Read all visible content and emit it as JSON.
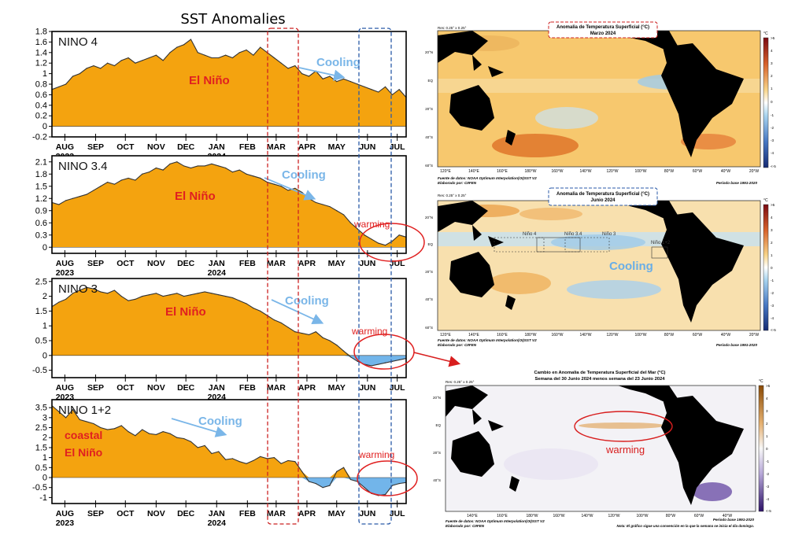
{
  "main_title": "SST Anomalies",
  "x_month_labels": [
    "AUG",
    "SEP",
    "OCT",
    "NOV",
    "DEC",
    "JAN",
    "FEB",
    "MAR",
    "APR",
    "MAY",
    "JUN",
    "JUL"
  ],
  "x_year_labels": [
    "2023",
    "2024"
  ],
  "chart_data": [
    {
      "type": "area",
      "title": "NINO 4",
      "ylim": [
        -0.2,
        1.8
      ],
      "yticks": [
        "-0.2",
        "0",
        "0.2",
        "0.4",
        "0.6",
        "0.8",
        "1",
        "1.2",
        "1.4",
        "1.6",
        "1.8"
      ],
      "x": [
        "2023-07-19",
        "2023-07-26",
        "2023-08-02",
        "2023-08-09",
        "2023-08-16",
        "2023-08-23",
        "2023-08-30",
        "2023-09-06",
        "2023-09-13",
        "2023-09-20",
        "2023-09-27",
        "2023-10-04",
        "2023-10-11",
        "2023-10-18",
        "2023-10-25",
        "2023-11-01",
        "2023-11-08",
        "2023-11-15",
        "2023-11-22",
        "2023-11-29",
        "2023-12-06",
        "2023-12-13",
        "2023-12-20",
        "2023-12-27",
        "2024-01-03",
        "2024-01-10",
        "2024-01-17",
        "2024-01-24",
        "2024-01-31",
        "2024-02-07",
        "2024-02-14",
        "2024-02-21",
        "2024-02-28",
        "2024-03-06",
        "2024-03-13",
        "2024-03-20",
        "2024-03-27",
        "2024-04-03",
        "2024-04-10",
        "2024-04-17",
        "2024-04-24",
        "2024-05-01",
        "2024-05-08",
        "2024-05-15",
        "2024-05-22",
        "2024-05-29",
        "2024-06-05",
        "2024-06-12",
        "2024-06-19",
        "2024-06-26",
        "2024-07-03",
        "2024-07-10"
      ],
      "values": [
        0.7,
        0.75,
        0.8,
        0.95,
        1.0,
        1.1,
        1.15,
        1.1,
        1.2,
        1.15,
        1.25,
        1.3,
        1.2,
        1.25,
        1.3,
        1.35,
        1.25,
        1.4,
        1.5,
        1.55,
        1.65,
        1.4,
        1.35,
        1.3,
        1.3,
        1.35,
        1.3,
        1.4,
        1.45,
        1.35,
        1.5,
        1.4,
        1.3,
        1.2,
        1.1,
        1.15,
        1.0,
        0.95,
        1.05,
        0.9,
        0.95,
        0.85,
        0.9,
        0.85,
        0.8,
        0.75,
        0.7,
        0.65,
        0.75,
        0.6,
        0.7,
        0.55
      ],
      "annotations": [
        {
          "text": "El Niño",
          "color": "#e02020"
        },
        {
          "text": "Cooling",
          "color": "#7ab6e8"
        }
      ]
    },
    {
      "type": "area",
      "title": "NINO 3.4",
      "ylim": [
        -0.15,
        2.25
      ],
      "yticks": [
        "0",
        "0.3",
        "0.6",
        "0.9",
        "1.2",
        "1.5",
        "1.8",
        "2.1"
      ],
      "x": [
        "2023-07-19",
        "2023-07-26",
        "2023-08-02",
        "2023-08-09",
        "2023-08-16",
        "2023-08-23",
        "2023-08-30",
        "2023-09-06",
        "2023-09-13",
        "2023-09-20",
        "2023-09-27",
        "2023-10-04",
        "2023-10-11",
        "2023-10-18",
        "2023-10-25",
        "2023-11-01",
        "2023-11-08",
        "2023-11-15",
        "2023-11-22",
        "2023-11-29",
        "2023-12-06",
        "2023-12-13",
        "2023-12-20",
        "2023-12-27",
        "2024-01-03",
        "2024-01-10",
        "2024-01-17",
        "2024-01-24",
        "2024-01-31",
        "2024-02-07",
        "2024-02-14",
        "2024-02-21",
        "2024-02-28",
        "2024-03-06",
        "2024-03-13",
        "2024-03-20",
        "2024-03-27",
        "2024-04-03",
        "2024-04-10",
        "2024-04-17",
        "2024-04-24",
        "2024-05-01",
        "2024-05-08",
        "2024-05-15",
        "2024-05-22",
        "2024-05-29",
        "2024-06-05",
        "2024-06-12",
        "2024-06-19",
        "2024-06-26",
        "2024-07-03",
        "2024-07-10"
      ],
      "values": [
        1.1,
        1.05,
        1.15,
        1.2,
        1.25,
        1.3,
        1.4,
        1.5,
        1.6,
        1.55,
        1.65,
        1.7,
        1.65,
        1.8,
        1.85,
        1.95,
        1.9,
        2.05,
        2.1,
        2.0,
        1.95,
        2.0,
        2.0,
        2.05,
        2.0,
        1.95,
        1.85,
        1.9,
        1.8,
        1.75,
        1.7,
        1.6,
        1.55,
        1.5,
        1.4,
        1.45,
        1.35,
        1.2,
        1.1,
        1.05,
        1.0,
        0.9,
        0.8,
        0.6,
        0.45,
        0.3,
        0.2,
        0.1,
        0.05,
        0.15,
        0.3,
        0.25
      ],
      "annotations": [
        {
          "text": "El Niño",
          "color": "#e02020"
        },
        {
          "text": "Cooling",
          "color": "#7ab6e8"
        },
        {
          "text": "warming",
          "color": "#e02020"
        }
      ]
    },
    {
      "type": "area",
      "title": "NINO 3",
      "ylim": [
        -0.75,
        2.6
      ],
      "yticks": [
        "-0.5",
        "0",
        "0.5",
        "1",
        "1.5",
        "2",
        "2.5"
      ],
      "x": [
        "2023-07-19",
        "2023-07-26",
        "2023-08-02",
        "2023-08-09",
        "2023-08-16",
        "2023-08-23",
        "2023-08-30",
        "2023-09-06",
        "2023-09-13",
        "2023-09-20",
        "2023-09-27",
        "2023-10-04",
        "2023-10-11",
        "2023-10-18",
        "2023-10-25",
        "2023-11-01",
        "2023-11-08",
        "2023-11-15",
        "2023-11-22",
        "2023-11-29",
        "2023-12-06",
        "2023-12-13",
        "2023-12-20",
        "2023-12-27",
        "2024-01-03",
        "2024-01-10",
        "2024-01-17",
        "2024-01-24",
        "2024-01-31",
        "2024-02-07",
        "2024-02-14",
        "2024-02-21",
        "2024-02-28",
        "2024-03-06",
        "2024-03-13",
        "2024-03-20",
        "2024-03-27",
        "2024-04-03",
        "2024-04-10",
        "2024-04-17",
        "2024-04-24",
        "2024-05-01",
        "2024-05-08",
        "2024-05-15",
        "2024-05-22",
        "2024-05-29",
        "2024-06-05",
        "2024-06-12",
        "2024-06-19",
        "2024-06-26",
        "2024-07-03",
        "2024-07-10"
      ],
      "values": [
        1.65,
        1.8,
        1.9,
        2.1,
        2.2,
        2.3,
        2.25,
        2.15,
        2.1,
        2.2,
        2.0,
        1.85,
        1.9,
        2.0,
        2.05,
        2.1,
        2.0,
        2.05,
        2.1,
        2.0,
        2.05,
        2.1,
        2.15,
        2.1,
        2.05,
        2.0,
        1.95,
        1.85,
        1.75,
        1.6,
        1.5,
        1.35,
        1.2,
        1.1,
        0.95,
        0.8,
        0.75,
        0.7,
        0.8,
        0.6,
        0.5,
        0.35,
        0.15,
        -0.05,
        -0.2,
        -0.3,
        -0.35,
        -0.3,
        -0.25,
        -0.2,
        -0.15,
        -0.1
      ],
      "annotations": [
        {
          "text": "El Niño",
          "color": "#e02020"
        },
        {
          "text": "Cooling",
          "color": "#7ab6e8"
        },
        {
          "text": "warming",
          "color": "#e02020"
        }
      ]
    },
    {
      "type": "area",
      "title": "NINO 1+2",
      "ylim": [
        -1.3,
        3.9
      ],
      "yticks": [
        "-1",
        "-0.5",
        "0",
        "0.5",
        "1",
        "1.5",
        "2",
        "2.5",
        "3",
        "3.5"
      ],
      "x": [
        "2023-07-19",
        "2023-07-26",
        "2023-08-02",
        "2023-08-09",
        "2023-08-16",
        "2023-08-23",
        "2023-08-30",
        "2023-09-06",
        "2023-09-13",
        "2023-09-20",
        "2023-09-27",
        "2023-10-04",
        "2023-10-11",
        "2023-10-18",
        "2023-10-25",
        "2023-11-01",
        "2023-11-08",
        "2023-11-15",
        "2023-11-22",
        "2023-11-29",
        "2023-12-06",
        "2023-12-13",
        "2023-12-20",
        "2023-12-27",
        "2024-01-03",
        "2024-01-10",
        "2024-01-17",
        "2024-01-24",
        "2024-01-31",
        "2024-02-07",
        "2024-02-14",
        "2024-02-21",
        "2024-02-28",
        "2024-03-06",
        "2024-03-13",
        "2024-03-20",
        "2024-03-27",
        "2024-04-03",
        "2024-04-10",
        "2024-04-17",
        "2024-04-24",
        "2024-05-01",
        "2024-05-08",
        "2024-05-15",
        "2024-05-22",
        "2024-05-29",
        "2024-06-05",
        "2024-06-12",
        "2024-06-19",
        "2024-06-26",
        "2024-07-03",
        "2024-07-10"
      ],
      "values": [
        3.6,
        3.3,
        3.0,
        3.4,
        2.9,
        2.8,
        2.7,
        2.5,
        2.4,
        2.45,
        2.6,
        2.3,
        2.1,
        2.4,
        2.2,
        2.15,
        2.3,
        2.2,
        2.0,
        1.95,
        1.8,
        1.5,
        1.6,
        1.2,
        1.3,
        0.9,
        0.95,
        0.8,
        0.7,
        0.85,
        1.05,
        0.95,
        1.0,
        0.7,
        0.85,
        0.8,
        0.3,
        -0.2,
        -0.3,
        -0.5,
        -0.4,
        0.3,
        0.5,
        -0.1,
        -0.2,
        -0.5,
        -0.8,
        -0.9,
        -0.85,
        -0.4,
        -0.3,
        -0.25
      ],
      "annotations": [
        {
          "text": "coastal",
          "color": "#e02020"
        },
        {
          "text": "El Niño",
          "color": "#e02020"
        },
        {
          "text": "Cooling",
          "color": "#7ab6e8"
        },
        {
          "text": "warming",
          "color": "#e02020"
        }
      ]
    }
  ],
  "maps": {
    "march": {
      "title1": "Anomalia de Temperatura Superficial (°C)",
      "title2": "Marzo 2024",
      "res": "Res: 0.25° x 0.25°",
      "src1": "Fuente de datos: NOAA Optimum Interpolation(OI)SST V2",
      "src2": "Elaborado por: CIIFEN",
      "period": "Periodo base 1991-2020",
      "lat_labels": [
        "20°N",
        "EQ",
        "20°S",
        "40°S",
        "60°S"
      ],
      "lon_labels": [
        "120°E",
        "140°E",
        "160°E",
        "180°W",
        "160°W",
        "140°W",
        "120°W",
        "100°W",
        "80°W",
        "60°W",
        "40°W",
        "20°W"
      ],
      "colorbar_unit": "°C",
      "colorbar_ticks": [
        ">5",
        "4",
        "3",
        "2",
        "1",
        "0",
        "-1",
        "-2",
        "-3",
        "-4",
        "<-5"
      ]
    },
    "june": {
      "title1": "Anomalia de Temperatura Superficial (°C)",
      "title2": "Junio 2024",
      "res": "Res: 0.25° x 0.25°",
      "src1": "Fuente de datos: NOAA Optimum Interpolation(OI)SST V2",
      "src2": "Elaborado por: CIIFEN",
      "period": "Periodo base 1991-2020",
      "lat_labels": [
        "20°N",
        "EQ",
        "20°S",
        "40°S",
        "60°S"
      ],
      "lon_labels": [
        "120°E",
        "140°E",
        "160°E",
        "180°W",
        "160°W",
        "140°W",
        "120°W",
        "100°W",
        "80°W",
        "60°W",
        "40°W",
        "20°W"
      ],
      "region_labels": [
        "Niño 4",
        "Niño 3.4",
        "Niño 3",
        "Niño 1+2"
      ],
      "annotation": "Cooling",
      "colorbar_unit": "°C",
      "colorbar_ticks": [
        ">5",
        "4",
        "3",
        "2",
        "1",
        "0",
        "-1",
        "-2",
        "-3",
        "-4",
        "<-5"
      ]
    },
    "change": {
      "title1": "Cambio en Anomalia de Temperatura Superficial del Mar (°C)",
      "title2": "Semana del 30 Junio 2024 menos semana del 23 Junio 2024",
      "res": "Res: 0.25° x 0.25°",
      "src1": "Fuente de datos: NOAA Optimum Interpolation(OI)SST V2",
      "src2": "Elaborado por: CIIFEN",
      "period": "Periodo base 1991-2020",
      "note": "Nota: El gráfico sigue una convención en la que la semana se inicia el día domingo.",
      "lat_labels": [
        "20°N",
        "EQ",
        "20°S",
        "40°S"
      ],
      "lon_labels": [
        "140°E",
        "160°E",
        "180°W",
        "160°W",
        "140°W",
        "120°W",
        "100°W",
        "80°W",
        "60°W",
        "40°W"
      ],
      "annotation": "warming",
      "colorbar_unit": "°C",
      "colorbar_ticks": [
        ">5",
        "4",
        "3",
        "2",
        "1",
        "0",
        "-1",
        "-2",
        "-3",
        "-4",
        "<-5"
      ]
    }
  },
  "colors": {
    "fill_positive": "#f4a30f",
    "fill_negative": "#72b5ea",
    "march_box": "#cc2222",
    "june_box": "#2a5aa8",
    "cooling": "#7ab6e8",
    "warming": "#e02020"
  }
}
